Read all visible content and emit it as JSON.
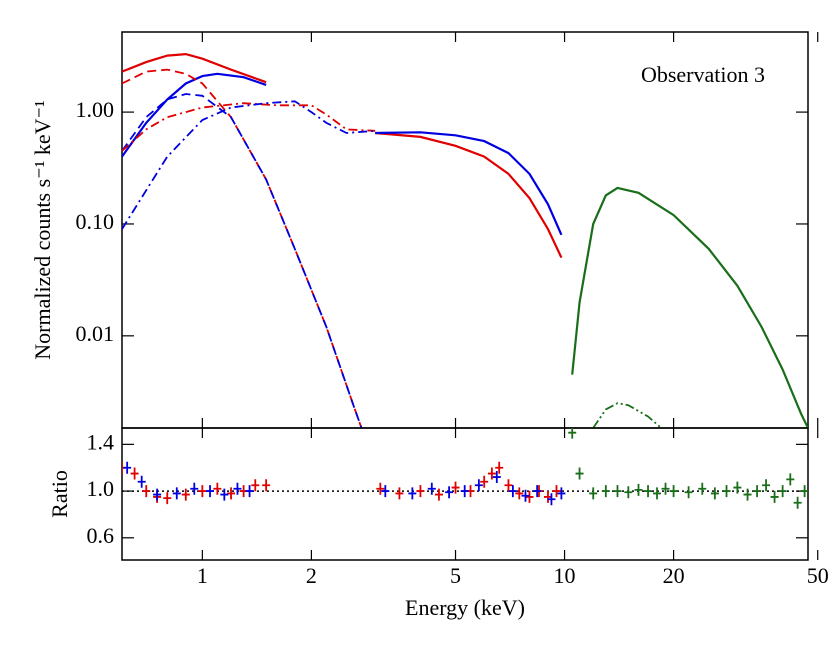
{
  "chart_data": [
    {
      "type": "line",
      "ylabel": "Normalized counts s⁻¹ keV⁻¹",
      "annotation": "Observation 3",
      "xscale": "log",
      "yscale": "log",
      "xlim": [
        0.6,
        47
      ],
      "ylim": [
        0.0015,
        5.2
      ],
      "yticks": [
        0.01,
        {
          "value": 0.1,
          "label": "0.10"
        },
        {
          "value": 1,
          "label": "1.00"
        }
      ],
      "series": [
        {
          "color": "#e00000",
          "dash": "solid",
          "x": [
            0.6,
            0.7,
            0.8,
            0.9,
            1.0,
            1.2,
            1.5,
            null,
            3,
            4,
            5,
            6,
            7,
            8,
            9,
            9.8
          ],
          "values": [
            2.3,
            2.8,
            3.2,
            3.3,
            3.0,
            2.4,
            1.85,
            null,
            0.65,
            0.6,
            0.5,
            0.4,
            0.28,
            0.17,
            0.09,
            0.05
          ]
        },
        {
          "color": "#0000e0",
          "dash": "solid",
          "x": [
            0.6,
            0.7,
            0.8,
            0.9,
            1.0,
            1.1,
            1.3,
            1.5,
            null,
            3,
            4,
            5,
            6,
            7,
            8,
            9,
            9.8
          ],
          "values": [
            0.4,
            0.8,
            1.3,
            1.8,
            2.1,
            2.2,
            2.05,
            1.75,
            null,
            0.65,
            0.66,
            0.62,
            0.55,
            0.43,
            0.28,
            0.15,
            0.08
          ]
        },
        {
          "color": "#1a6e1a",
          "dash": "solid",
          "x": [
            10.5,
            11,
            12,
            13,
            14,
            16,
            20,
            25,
            30,
            35,
            40,
            45,
            47
          ],
          "values": [
            0.0045,
            0.02,
            0.1,
            0.18,
            0.21,
            0.19,
            0.12,
            0.06,
            0.028,
            0.012,
            0.005,
            0.002,
            0.0015
          ]
        },
        {
          "color": "#e00000",
          "dash": "dash",
          "x": [
            0.6,
            0.7,
            0.8,
            0.9,
            1.0,
            1.2,
            1.5,
            1.8,
            2.2,
            2.6,
            2.75
          ],
          "values": [
            1.8,
            2.3,
            2.4,
            2.2,
            1.8,
            0.9,
            0.25,
            0.06,
            0.012,
            0.0025,
            0.0015
          ]
        },
        {
          "color": "#0000e0",
          "dash": "dash",
          "x": [
            0.6,
            0.7,
            0.8,
            0.9,
            1.0,
            1.2,
            1.5,
            1.8,
            2.2,
            2.6,
            2.75
          ],
          "values": [
            0.45,
            0.9,
            1.3,
            1.45,
            1.4,
            0.9,
            0.25,
            0.06,
            0.012,
            0.0025,
            0.0015
          ]
        },
        {
          "color": "#e00000",
          "dash": "dashdot",
          "x": [
            0.6,
            0.7,
            0.8,
            1.0,
            1.3,
            1.6,
            2.0,
            2.2,
            2.5,
            3
          ],
          "values": [
            0.45,
            0.7,
            0.9,
            1.1,
            1.2,
            1.15,
            1.15,
            0.95,
            0.7,
            0.68
          ]
        },
        {
          "color": "#0000e0",
          "dash": "dashdot",
          "x": [
            0.6,
            0.7,
            0.8,
            1.0,
            1.2,
            1.5,
            1.8,
            2.0,
            2.2,
            2.5,
            3
          ],
          "values": [
            0.09,
            0.2,
            0.4,
            0.85,
            1.1,
            1.2,
            1.25,
            1.0,
            0.8,
            0.65,
            0.68
          ]
        },
        {
          "color": "#1a6e1a",
          "dash": "dashdotdot",
          "x": [
            12,
            13,
            14,
            15,
            17,
            18.5
          ],
          "values": [
            0.0015,
            0.0022,
            0.0025,
            0.0024,
            0.0019,
            0.0015
          ]
        }
      ]
    },
    {
      "type": "scatter",
      "ylabel": "Ratio",
      "xlabel": "Energy (keV)",
      "xscale": "log",
      "xlim": [
        0.6,
        47
      ],
      "ylim": [
        0.41,
        1.54
      ],
      "xticks": [
        1,
        2,
        5,
        10,
        20,
        50
      ],
      "yticks": [
        0.6,
        {
          "value": 1,
          "label": "1.0"
        },
        1.4
      ],
      "hline": 1,
      "series": [
        {
          "color": "#e00000",
          "x": [
            0.6,
            0.65,
            0.7,
            0.75,
            0.8,
            0.9,
            1.0,
            1.1,
            1.2,
            1.3,
            1.4,
            1.5,
            3.1,
            3.5,
            4,
            4.5,
            5,
            5.5,
            6,
            6.3,
            6.6,
            7,
            7.5,
            8,
            8.5,
            9,
            9.5
          ],
          "values": [
            1.2,
            1.15,
            1.0,
            0.95,
            0.94,
            0.97,
            1.0,
            1.02,
            0.98,
            1.0,
            1.05,
            1.05,
            1.02,
            0.98,
            1.0,
            0.97,
            1.03,
            1.0,
            1.08,
            1.15,
            1.2,
            1.05,
            0.98,
            0.95,
            1.0,
            0.95,
            1.0
          ]
        },
        {
          "color": "#0000e0",
          "x": [
            0.62,
            0.68,
            0.75,
            0.85,
            0.95,
            1.05,
            1.15,
            1.25,
            1.35,
            3.2,
            3.8,
            4.3,
            4.8,
            5.3,
            5.8,
            6.5,
            7.2,
            7.8,
            8.4,
            9.2,
            9.8
          ],
          "values": [
            1.2,
            1.08,
            0.97,
            0.98,
            1.02,
            1.0,
            0.97,
            1.02,
            1.0,
            1.0,
            0.98,
            1.02,
            0.99,
            1.0,
            1.05,
            1.12,
            1.0,
            0.96,
            1.0,
            0.93,
            0.98
          ]
        },
        {
          "color": "#1a6e1a",
          "x": [
            10.5,
            11,
            12,
            13,
            14,
            15,
            16,
            17,
            18,
            19,
            20,
            22,
            24,
            26,
            28,
            30,
            32,
            34,
            36,
            38,
            40,
            42,
            44,
            46
          ],
          "values": [
            1.5,
            1.15,
            0.98,
            1.0,
            1.0,
            0.99,
            1.01,
            1.0,
            0.98,
            1.02,
            1.0,
            0.99,
            1.02,
            0.98,
            1.0,
            1.03,
            0.97,
            1.0,
            1.05,
            0.95,
            1.0,
            1.1,
            0.9,
            1.0
          ]
        }
      ]
    }
  ]
}
